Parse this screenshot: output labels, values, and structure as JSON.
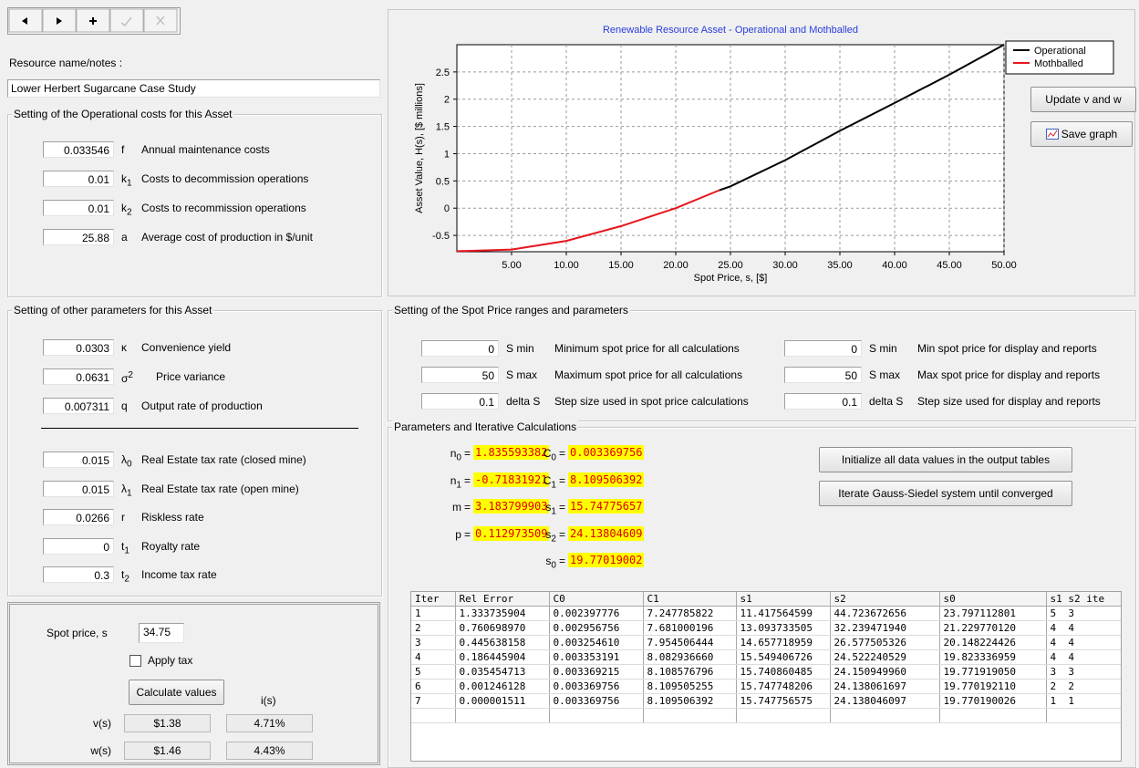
{
  "resource": {
    "label": "Resource name/notes :",
    "name": "Lower Herbert Sugarcane Case Study"
  },
  "operational_costs": {
    "title": "Setting of the Operational costs for this Asset",
    "rows": [
      {
        "value": "0.033546",
        "symbol": "f",
        "desc": "Annual maintenance costs"
      },
      {
        "value": "0.01",
        "symbol": "k",
        "sub": "1",
        "desc": "Costs to decommission operations"
      },
      {
        "value": "0.01",
        "symbol": "k",
        "sub": "2",
        "desc": "Costs to recommission operations"
      },
      {
        "value": "25.88",
        "symbol": "a",
        "desc": "Average cost of production in $/unit"
      }
    ]
  },
  "other_parameters": {
    "title": "Setting of other parameters for this Asset",
    "rows": [
      {
        "value": "0.0303",
        "symbol": "κ",
        "desc": "Convenience yield"
      },
      {
        "value": "0.0631",
        "symbol": "σ",
        "sup": "2",
        "desc": "Price variance"
      },
      {
        "value": "0.007311",
        "symbol": "q",
        "desc": "Output rate of production"
      }
    ],
    "tax_rows": [
      {
        "value": "0.015",
        "symbol": "λ",
        "sub": "0",
        "desc": "Real Estate tax rate (closed mine)"
      },
      {
        "value": "0.015",
        "symbol": "λ",
        "sub": "1",
        "desc": "Real Estate tax rate (open mine)"
      },
      {
        "value": "0.0266",
        "symbol": "r",
        "desc": "Riskless rate"
      },
      {
        "value": "0",
        "symbol": "t",
        "sub": "1",
        "desc": "Royalty rate"
      },
      {
        "value": "0.3",
        "symbol": "t",
        "sub": "2",
        "desc": "Income tax rate"
      }
    ]
  },
  "spot_calc": {
    "spot_label": "Spot price, s",
    "spot_value": "34.75",
    "apply_tax": "Apply tax",
    "calculate": "Calculate values",
    "rate_header": "i(s)",
    "rows": [
      {
        "label": "v(s)",
        "value": "$1.38",
        "rate": "4.71%"
      },
      {
        "label": "w(s)",
        "value": "$1.46",
        "rate": "4.43%"
      }
    ]
  },
  "chart_buttons": {
    "update": "Update v and w",
    "save": "Save graph"
  },
  "spot_ranges": {
    "title": "Setting of the Spot Price ranges and parameters",
    "calc": [
      {
        "value": "0",
        "symbol": "S min",
        "desc": "Minimum spot price for all calculations"
      },
      {
        "value": "50",
        "symbol": "S max",
        "desc": "Maximum spot price for all calculations"
      },
      {
        "value": "0.1",
        "symbol": "delta S",
        "desc": "Step size used in spot price calculations"
      }
    ],
    "display": [
      {
        "value": "0",
        "symbol": "S min",
        "desc": "Min spot price for display and reports"
      },
      {
        "value": "50",
        "symbol": "S max",
        "desc": "Max spot price for display and reports"
      },
      {
        "value": "0.1",
        "symbol": "delta S",
        "desc": "Step size used for display and reports"
      }
    ]
  },
  "iterative": {
    "title": "Parameters and Iterative Calculations",
    "params_left": [
      {
        "label": "n",
        "sub": "0",
        "sign": "=",
        "value": "1.835593382"
      },
      {
        "label": "n",
        "sub": "1",
        "sign": "=",
        "value": "-0.71831921"
      },
      {
        "label": "m",
        "sign": "=",
        "value": "3.183799903"
      },
      {
        "label": "p",
        "sign": "=",
        "value": "0.112973509"
      }
    ],
    "params_right": [
      {
        "label": "C",
        "sub": "0",
        "sign": "=",
        "value": "0.003369756"
      },
      {
        "label": "C",
        "sub": "1",
        "sign": "=",
        "value": "8.109506392"
      },
      {
        "label": "s",
        "sub": "1",
        "sign": "=",
        "value": "15.74775657"
      },
      {
        "label": "s",
        "sub": "2",
        "sign": "=",
        "value": "24.13804609"
      },
      {
        "label": "s",
        "sub": "0",
        "sign": "=",
        "value": "19.77019002"
      }
    ],
    "buttons": [
      "Initialize all data values in the output tables",
      "Iterate Gauss-Siedel system until converged"
    ],
    "table": {
      "header": [
        "Iter",
        "Rel Error",
        "C0",
        "C1",
        "s1",
        "s2",
        "s0",
        "s1 s2 ite"
      ],
      "rows": [
        [
          "1",
          "1.333735904",
          "0.002397776",
          "7.247785822",
          "11.417564599",
          "44.723672656",
          "23.797112801",
          "5  3"
        ],
        [
          "2",
          "0.760698970",
          "0.002956756",
          "7.681000196",
          "13.093733505",
          "32.239471940",
          "21.229770120",
          "4  4"
        ],
        [
          "3",
          "0.445638158",
          "0.003254610",
          "7.954506444",
          "14.657718959",
          "26.577505326",
          "20.148224426",
          "4  4"
        ],
        [
          "4",
          "0.186445904",
          "0.003353191",
          "8.082936660",
          "15.549406726",
          "24.522240529",
          "19.823336959",
          "4  4"
        ],
        [
          "5",
          "0.035454713",
          "0.003369215",
          "8.108576796",
          "15.740860485",
          "24.150949960",
          "19.771919050",
          "3  3"
        ],
        [
          "6",
          "0.001246128",
          "0.003369756",
          "8.109505255",
          "15.747748206",
          "24.138061697",
          "19.770192110",
          "2  2"
        ],
        [
          "7",
          "0.000001511",
          "0.003369756",
          "8.109506392",
          "15.747756575",
          "24.138046097",
          "19.770190026",
          "1  1"
        ]
      ]
    }
  },
  "chart_data": {
    "type": "line",
    "title": "Renewable Resource Asset - Operational and Mothballed",
    "x_label": "Spot Price, s, [$]",
    "y_label": "Asset Value, H(s), [$ millions]",
    "x": [
      0,
      5,
      10,
      15,
      20,
      24,
      25,
      30,
      35,
      40,
      45,
      50
    ],
    "series": [
      {
        "name": "Operational",
        "color": "#000000",
        "values": [
          null,
          null,
          null,
          null,
          null,
          0.33,
          0.4,
          0.88,
          1.42,
          1.93,
          2.45,
          3.0
        ]
      },
      {
        "name": "Mothballed",
        "color": "#e8141c",
        "values": [
          -0.79,
          -0.76,
          -0.6,
          -0.33,
          0,
          0.33,
          null,
          null,
          null,
          null,
          null,
          null
        ]
      }
    ],
    "xlim": [
      0,
      50
    ],
    "ylim": [
      -0.8,
      3.0
    ],
    "xticks": [
      {
        "value": 5,
        "label": "5.00"
      },
      {
        "value": 10,
        "label": "10.00"
      },
      {
        "value": 15,
        "label": "15.00"
      },
      {
        "value": 20,
        "label": "20.00"
      },
      {
        "value": 25,
        "label": "25.00"
      },
      {
        "value": 30,
        "label": "30.00"
      },
      {
        "value": 35,
        "label": "35.00"
      },
      {
        "value": 40,
        "label": "40.00"
      },
      {
        "value": 45,
        "label": "45.00"
      },
      {
        "value": 50,
        "label": "50.00"
      }
    ],
    "yticks": [
      -0.5,
      0,
      0.5,
      1,
      1.5,
      2,
      2.5
    ],
    "grid": true,
    "legend": "right"
  }
}
